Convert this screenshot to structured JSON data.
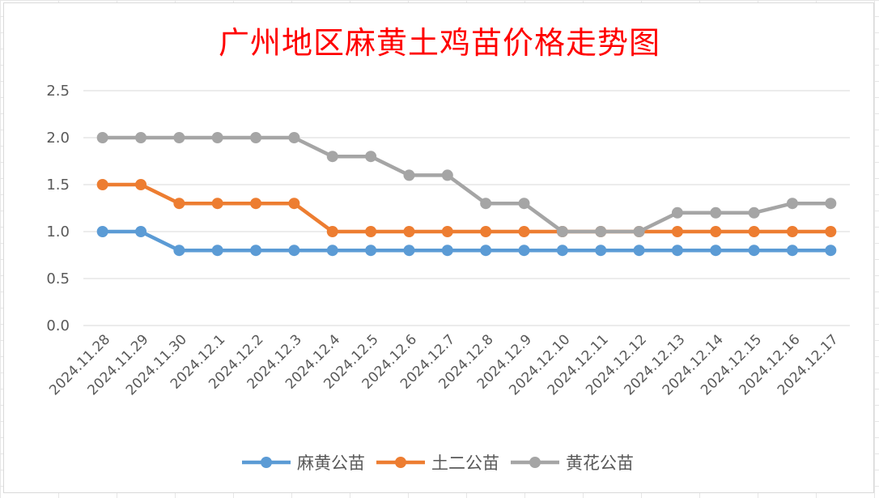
{
  "chart_data": {
    "type": "line",
    "title": "广州地区麻黄土鸡苗价格走势图",
    "categories": [
      "2024.11.28",
      "2024.11.29",
      "2024.11.30",
      "2024.12.1",
      "2024.12.2",
      "2024.12.3",
      "2024.12.4",
      "2024.12.5",
      "2024.12.6",
      "2024.12.7",
      "2024.12.8",
      "2024.12.9",
      "2024.12.10",
      "2024.12.11",
      "2024.12.12",
      "2024.12.13",
      "2024.12.14",
      "2024.12.15",
      "2024.12.16",
      "2024.12.17"
    ],
    "series": [
      {
        "name": "麻黄公苗",
        "color": "#5b9bd5",
        "values": [
          1.0,
          1.0,
          0.8,
          0.8,
          0.8,
          0.8,
          0.8,
          0.8,
          0.8,
          0.8,
          0.8,
          0.8,
          0.8,
          0.8,
          0.8,
          0.8,
          0.8,
          0.8,
          0.8,
          0.8
        ]
      },
      {
        "name": "土二公苗",
        "color": "#ed7d31",
        "values": [
          1.5,
          1.5,
          1.3,
          1.3,
          1.3,
          1.3,
          1.0,
          1.0,
          1.0,
          1.0,
          1.0,
          1.0,
          1.0,
          1.0,
          1.0,
          1.0,
          1.0,
          1.0,
          1.0,
          1.0
        ]
      },
      {
        "name": "黄花公苗",
        "color": "#a5a5a5",
        "values": [
          2.0,
          2.0,
          2.0,
          2.0,
          2.0,
          2.0,
          1.8,
          1.8,
          1.6,
          1.6,
          1.3,
          1.3,
          1.0,
          1.0,
          1.0,
          1.2,
          1.2,
          1.2,
          1.3,
          1.3
        ]
      }
    ],
    "yticks": [
      "0.0",
      "0.5",
      "1.0",
      "1.5",
      "2.0",
      "2.5"
    ],
    "ylim": [
      0,
      2.5
    ],
    "xlabel": "",
    "ylabel": "",
    "grid": true,
    "legend": "bottom"
  }
}
